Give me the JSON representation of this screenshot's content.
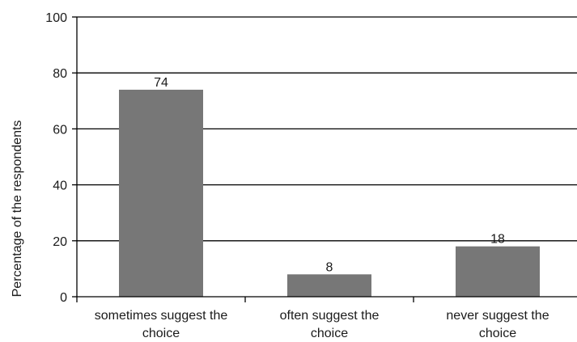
{
  "chart_data": {
    "type": "bar",
    "title": "",
    "xlabel": "",
    "ylabel": "Percentage of the respondents",
    "categories": [
      [
        "sometimes suggest the",
        "choice"
      ],
      [
        "often suggest the",
        "choice"
      ],
      [
        "never suggest the",
        "choice"
      ]
    ],
    "values": [
      74,
      8,
      18
    ],
    "data_labels": [
      "74",
      "8",
      "18"
    ],
    "ylim": [
      0,
      100
    ],
    "yticks": [
      0,
      20,
      40,
      60,
      80,
      100
    ],
    "grid": true,
    "legend": "none",
    "colors": {
      "bar": "#777777",
      "grid": "#000000",
      "axis": "#000000",
      "text": "#1a1a1a"
    }
  }
}
